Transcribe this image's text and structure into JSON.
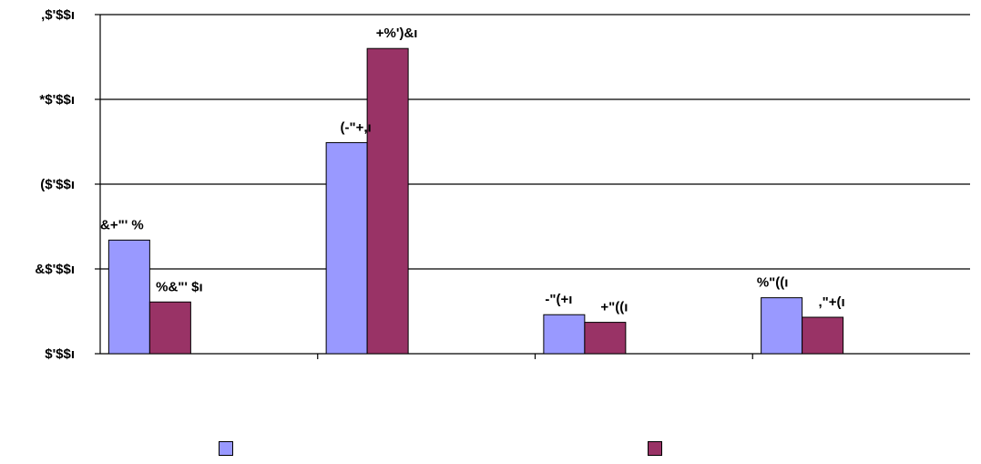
{
  "chart_data": {
    "type": "bar",
    "y_tick_labels": [
      "$'$$ı",
      "&$'$$ı",
      "($'$$ı",
      "*$'$$ı",
      ",$'$$ı"
    ],
    "ylim": [
      0,
      4
    ],
    "grid": true,
    "categories": [
      "",
      "",
      "",
      ""
    ],
    "series": [
      {
        "color": "#9999ff",
        "values": [
          1.34,
          2.49,
          0.46,
          0.66
        ],
        "labels": [
          "&+\"' %",
          "(-\"+,ı",
          "-\"(+ı",
          "%\"((ı"
        ]
      },
      {
        "color": "#993366",
        "values": [
          0.61,
          3.6,
          0.37,
          0.43
        ],
        "labels": [
          "%&\"' $ı",
          "+%')&ı",
          "+\"((ı",
          ",\"+(ı"
        ]
      }
    ],
    "legend_placement": "bottom"
  }
}
